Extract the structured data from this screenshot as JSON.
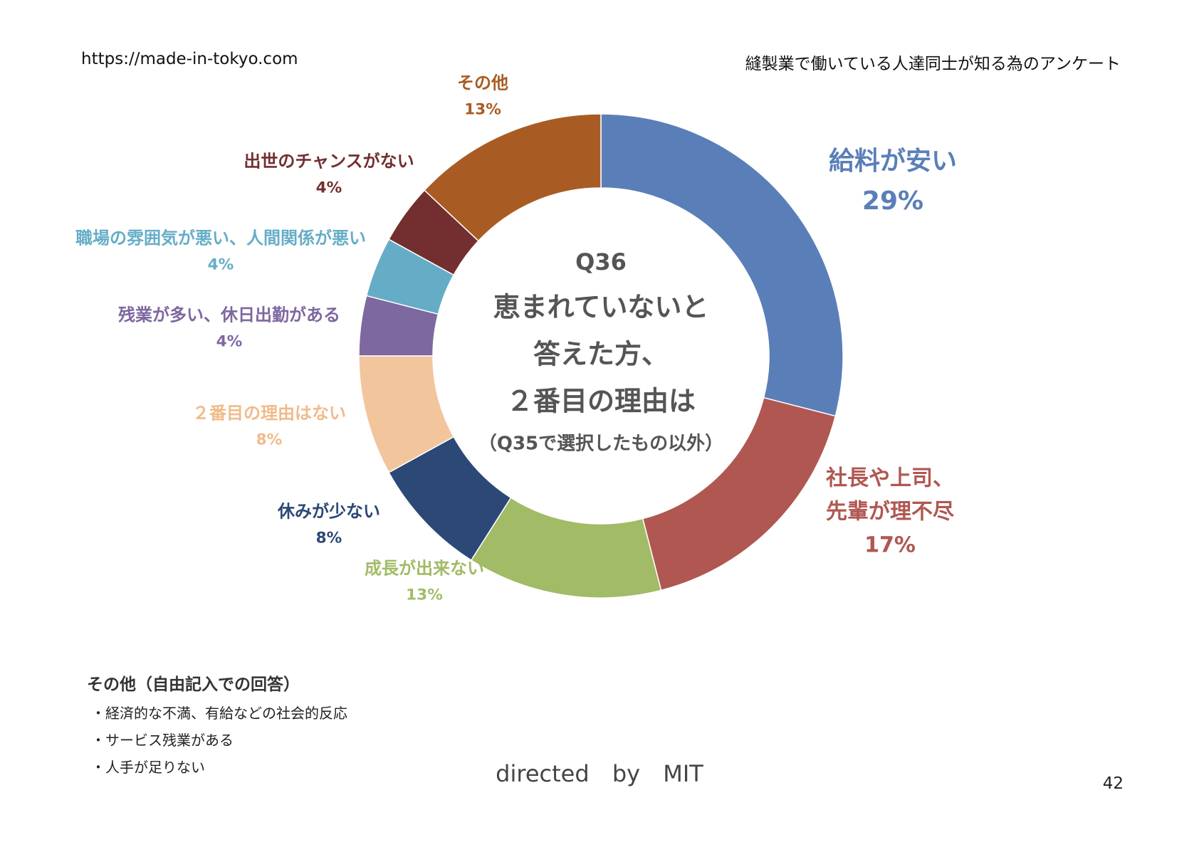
{
  "header": {
    "site_url": "https://made-in-tokyo.com",
    "survey_title": "縫製業で働いている人達同士が知る為のアンケート"
  },
  "chart_data": {
    "type": "pie",
    "variant": "donut",
    "center_text": [
      "Q36",
      "恵まれていないと",
      "答えた方、",
      "２番目の理由は",
      "（Q35で選択したもの以外）"
    ],
    "slices": [
      {
        "label": "給料が安い",
        "value": 29,
        "value_label": "29%",
        "color": "#5a7fb8"
      },
      {
        "label": "社長や上司、先輩が理不尽",
        "value": 17,
        "value_label": "17%",
        "color": "#b05752"
      },
      {
        "label": "成長が出来ない",
        "value": 13,
        "value_label": "13%",
        "color": "#a1bb66"
      },
      {
        "label": "休みが少ない",
        "value": 8,
        "value_label": "8%",
        "color": "#2c4877"
      },
      {
        "label": "２番目の理由はない",
        "value": 8,
        "value_label": "8%",
        "color": "#f2c59c"
      },
      {
        "label": "残業が多い、休日出勤がある",
        "value": 4,
        "value_label": "4%",
        "color": "#7e68a0"
      },
      {
        "label": "職場の雰囲気が悪い、人間関係が悪い",
        "value": 4,
        "value_label": "4%",
        "color": "#65adc7"
      },
      {
        "label": "出世のチャンスがない",
        "value": 4,
        "value_label": "4%",
        "color": "#732f2f"
      },
      {
        "label": "その他",
        "value": 13,
        "value_label": "13%",
        "color": "#a85c24"
      }
    ]
  },
  "notes": {
    "title": "その他（自由記入での回答）",
    "items": [
      "・経済的な不満、有給などの社会的反応",
      "・サービス残業がある",
      "・人手が足りない"
    ]
  },
  "footer": {
    "credit": "directed by MIT",
    "page_number": "42"
  }
}
